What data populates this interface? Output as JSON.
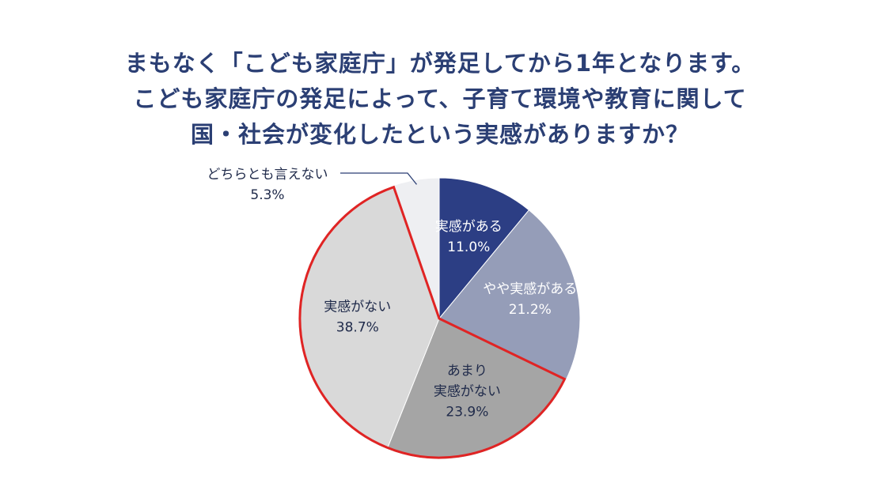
{
  "chart_data": {
    "type": "pie",
    "title_lines": [
      "まもなく「こども家庭庁」が発足してから1年となります。",
      "こども家庭庁の発足によって、子育て環境や教育に関して",
      "国・社会が変化したという実感がありますか？"
    ],
    "slices": [
      {
        "label_lines": [
          "実感がある"
        ],
        "value_text": "11.0%",
        "value": 11.0,
        "color": "#2c3e84",
        "text_color": "#ffffff"
      },
      {
        "label_lines": [
          "やや実感がある"
        ],
        "value_text": "21.2%",
        "value": 21.2,
        "color": "#959db8",
        "text_color": "#ffffff"
      },
      {
        "label_lines": [
          "あまり",
          "実感がない"
        ],
        "value_text": "23.9%",
        "value": 23.9,
        "color": "#a5a5a5",
        "text_color": "#1f2a4a"
      },
      {
        "label_lines": [
          "実感がない"
        ],
        "value_text": "38.7%",
        "value": 38.7,
        "color": "#d9d9d9",
        "text_color": "#1f2a4a"
      },
      {
        "label_lines": [
          "どちらとも言えない"
        ],
        "value_text": "5.3%",
        "value": 5.3,
        "color": "#eeeff2",
        "text_color": "#1f2a4a",
        "outside_label": true
      }
    ],
    "highlight": {
      "slices": [
        "あまり 実感がない",
        "実感がない"
      ],
      "color": "#e02424"
    },
    "start_angle": "12 o'clock",
    "direction": "clockwise"
  }
}
